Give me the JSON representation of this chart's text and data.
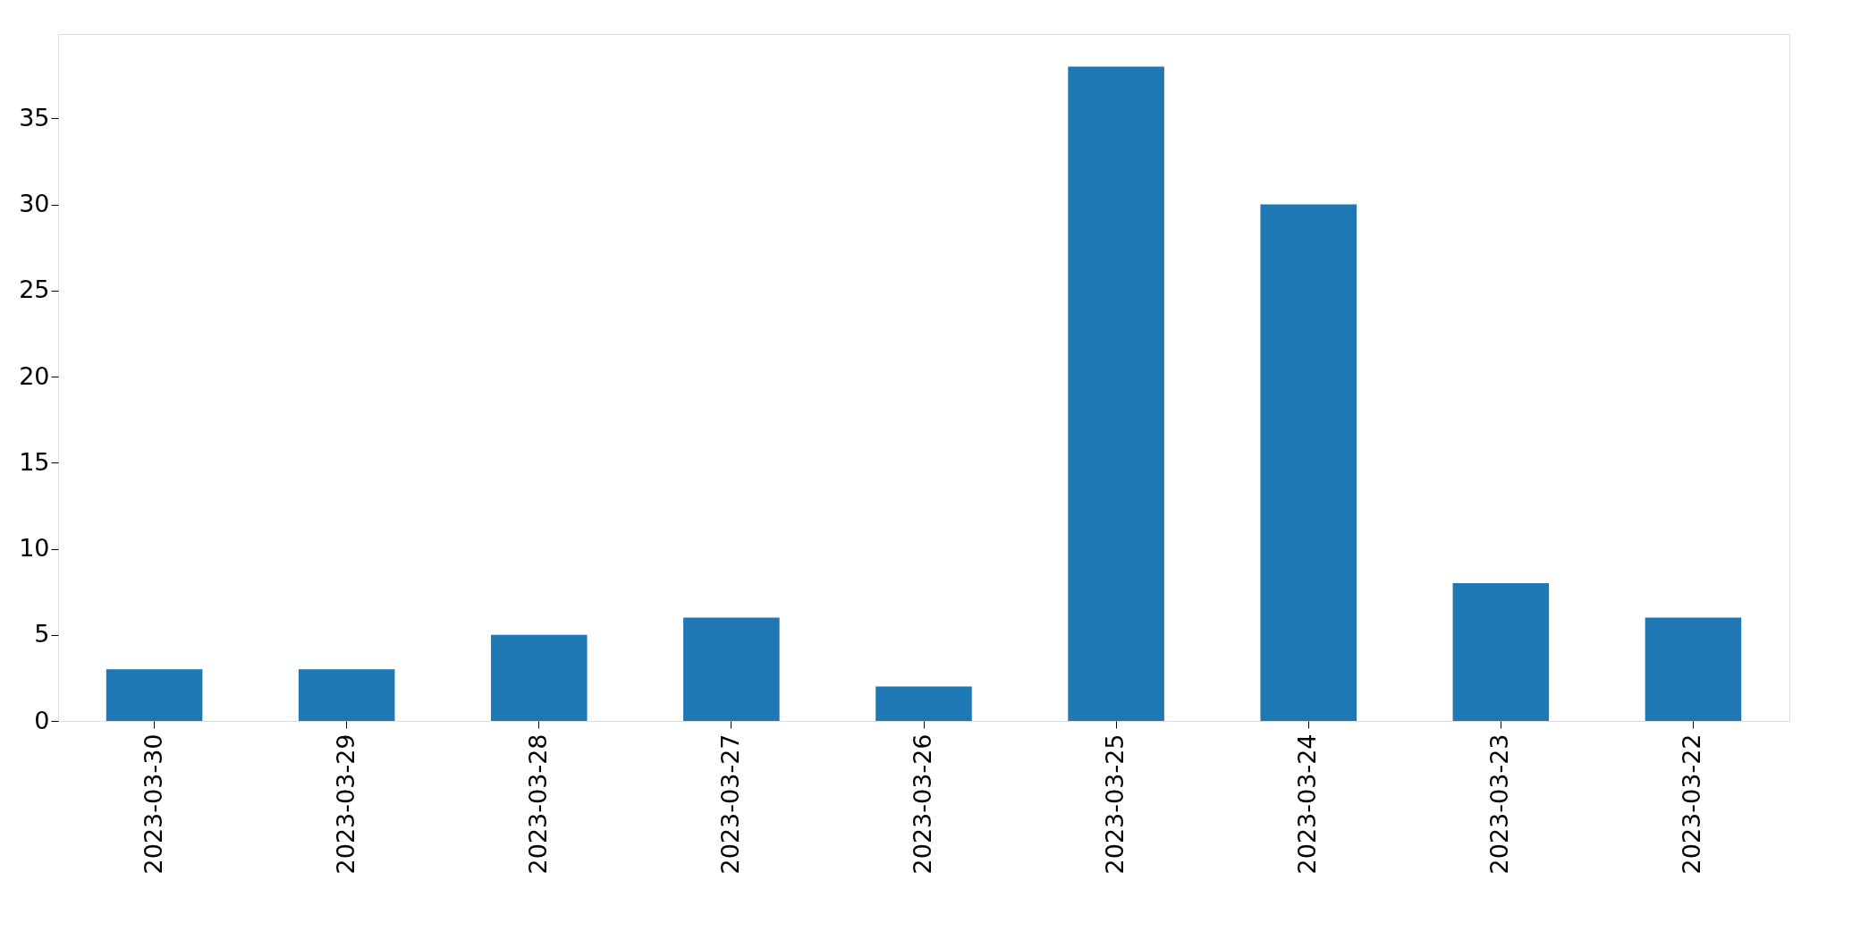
{
  "chart_data": {
    "type": "bar",
    "categories": [
      "2023-03-30",
      "2023-03-29",
      "2023-03-28",
      "2023-03-27",
      "2023-03-26",
      "2023-03-25",
      "2023-03-24",
      "2023-03-23",
      "2023-03-22"
    ],
    "values": [
      3,
      3,
      5,
      6,
      2,
      38,
      30,
      8,
      6
    ],
    "color": "#1f77b4",
    "ylim": [
      0,
      39.9
    ],
    "yticks": [
      0,
      5,
      10,
      15,
      20,
      25,
      30,
      35
    ]
  }
}
